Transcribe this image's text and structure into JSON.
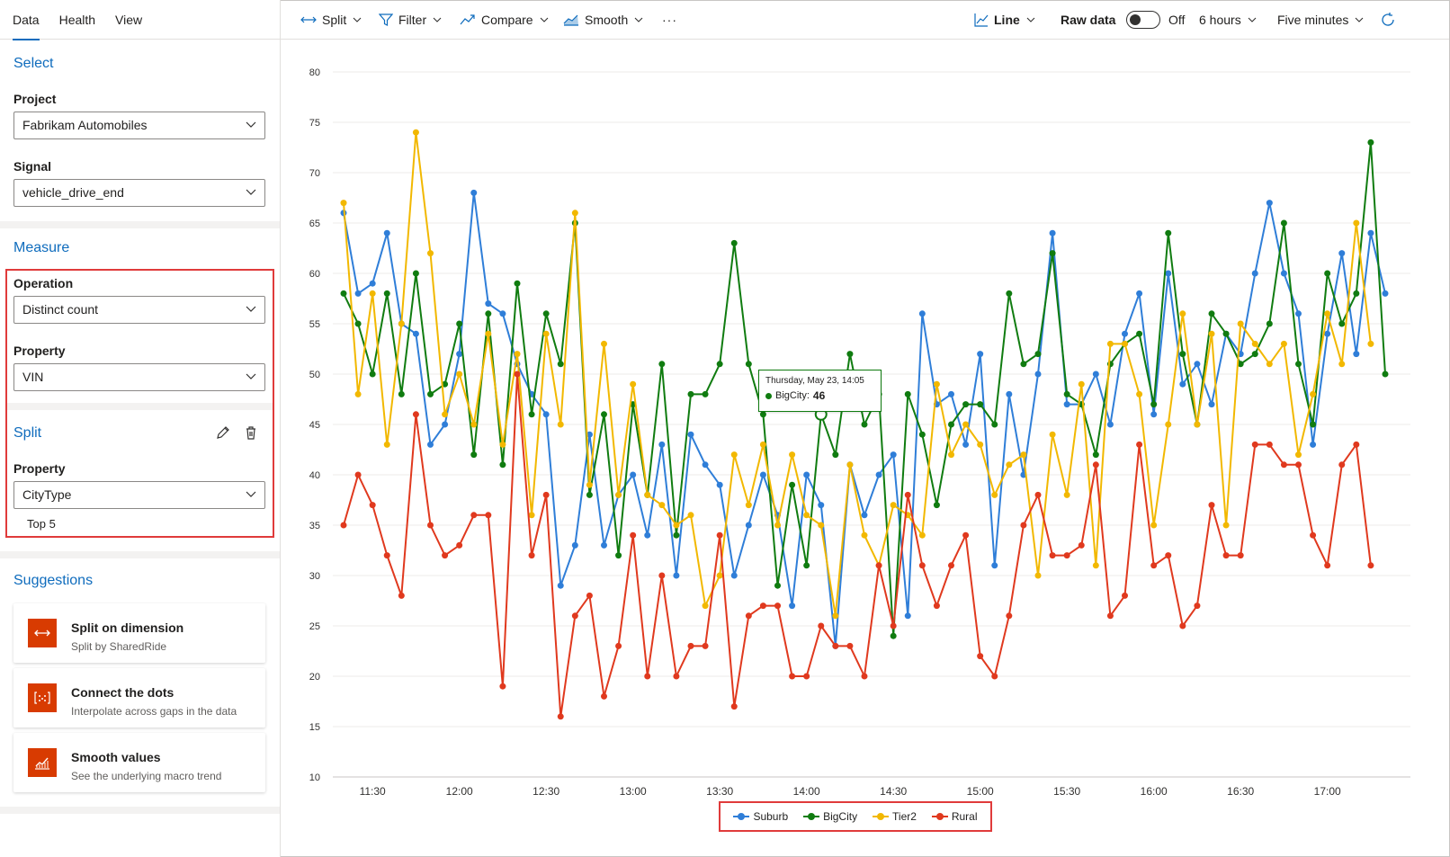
{
  "sidebar": {
    "tabs": [
      "Data",
      "Health",
      "View"
    ],
    "select_title": "Select",
    "project_label": "Project",
    "project_value": "Fabrikam Automobiles",
    "signal_label": "Signal",
    "signal_value": "vehicle_drive_end",
    "measure_title": "Measure",
    "operation_label": "Operation",
    "operation_value": "Distinct count",
    "property_label": "Property",
    "property_value": "VIN",
    "split_title": "Split",
    "split_property_label": "Property",
    "split_property_value": "CityType",
    "top_label": "Top 5",
    "suggestions_title": "Suggestions",
    "suggestions": [
      {
        "title": "Split on dimension",
        "subtitle": "Split by SharedRide",
        "icon": "split-arrows-icon"
      },
      {
        "title": "Connect the dots",
        "subtitle": "Interpolate across gaps in the data",
        "icon": "connect-dots-icon"
      },
      {
        "title": "Smooth values",
        "subtitle": "See the underlying macro trend",
        "icon": "smooth-chart-icon"
      }
    ]
  },
  "toolbar": {
    "split": "Split",
    "filter": "Filter",
    "compare": "Compare",
    "smooth": "Smooth",
    "more": "···",
    "line": "Line",
    "raw_data": "Raw data",
    "toggle_state": "Off",
    "time_range": "6 hours",
    "granularity": "Five minutes"
  },
  "tooltip": {
    "date": "Thursday, May 23, 14:05",
    "series": "BigCity:",
    "value": "46"
  },
  "chart_data": {
    "type": "line",
    "ylim": [
      10,
      80
    ],
    "y_ticks": [
      10,
      15,
      20,
      25,
      30,
      35,
      40,
      45,
      50,
      55,
      60,
      65,
      70,
      75,
      80
    ],
    "x_ticks": [
      "11:30",
      "12:00",
      "12:30",
      "13:00",
      "13:30",
      "14:00",
      "14:30",
      "15:00",
      "15:30",
      "16:00",
      "16:30",
      "17:00"
    ],
    "x_start": "11:20",
    "x_step_minutes": 5,
    "legend_position": "bottom-center",
    "series": [
      {
        "name": "Suburb",
        "color": "#2f7ed8",
        "values": [
          66,
          58,
          59,
          64,
          55,
          54,
          43,
          45,
          52,
          68,
          57,
          56,
          51,
          48,
          46,
          29,
          33,
          44,
          33,
          38,
          40,
          34,
          43,
          30,
          44,
          41,
          39,
          30,
          35,
          40,
          36,
          27,
          40,
          37,
          23,
          41,
          36,
          40,
          42,
          26,
          56,
          47,
          48,
          43,
          52,
          31,
          48,
          40,
          50,
          64,
          47,
          47,
          50,
          45,
          54,
          58,
          46,
          60,
          49,
          51,
          47,
          54,
          52,
          60,
          67,
          60,
          56,
          43,
          54,
          62,
          52,
          64,
          58
        ]
      },
      {
        "name": "BigCity",
        "color": "#107c10",
        "values": [
          58,
          55,
          50,
          58,
          48,
          60,
          48,
          49,
          55,
          42,
          56,
          41,
          59,
          46,
          56,
          51,
          65,
          38,
          46,
          32,
          47,
          38,
          51,
          34,
          48,
          48,
          51,
          63,
          51,
          46,
          29,
          39,
          31,
          46,
          42,
          52,
          45,
          48,
          24,
          48,
          44,
          37,
          45,
          47,
          47,
          45,
          58,
          51,
          52,
          62,
          48,
          47,
          42,
          51,
          53,
          54,
          47,
          64,
          52,
          45,
          56,
          54,
          51,
          52,
          55,
          65,
          51,
          45,
          60,
          55,
          58,
          73,
          50
        ]
      },
      {
        "name": "Tier2",
        "color": "#f2b800",
        "values": [
          67,
          48,
          58,
          43,
          55,
          74,
          62,
          46,
          50,
          45,
          54,
          43,
          52,
          36,
          54,
          45,
          66,
          39,
          53,
          38,
          49,
          38,
          37,
          35,
          36,
          27,
          30,
          42,
          37,
          43,
          35,
          42,
          36,
          35,
          26,
          41,
          34,
          31,
          37,
          36,
          34,
          49,
          42,
          45,
          43,
          38,
          41,
          42,
          30,
          44,
          38,
          49,
          31,
          53,
          53,
          48,
          35,
          45,
          56,
          45,
          54,
          35,
          55,
          53,
          51,
          53,
          42,
          48,
          56,
          51,
          65,
          53
        ]
      },
      {
        "name": "Rural",
        "color": "#e0391e",
        "values": [
          35,
          40,
          37,
          32,
          28,
          46,
          35,
          32,
          33,
          36,
          36,
          19,
          50,
          32,
          38,
          16,
          26,
          28,
          18,
          23,
          34,
          20,
          30,
          20,
          23,
          23,
          34,
          17,
          26,
          27,
          27,
          20,
          20,
          25,
          23,
          23,
          20,
          31,
          25,
          38,
          31,
          27,
          31,
          34,
          22,
          20,
          26,
          35,
          38,
          32,
          32,
          33,
          41,
          26,
          28,
          43,
          31,
          32,
          25,
          27,
          37,
          32,
          32,
          43,
          43,
          41,
          41,
          34,
          31,
          41,
          43,
          31
        ]
      }
    ]
  }
}
